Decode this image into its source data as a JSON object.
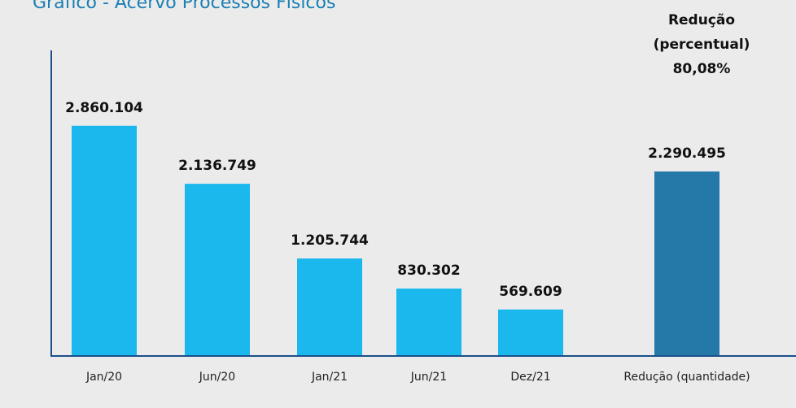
{
  "chart_data": {
    "type": "bar",
    "title": "Gráfico - Acervo Processos Físicos",
    "categories": [
      "Jan/20",
      "Jun/20",
      "Jan/21",
      "Jun/21",
      "Dez/21",
      "Redução (quantidade)"
    ],
    "values": [
      2860104,
      2136749,
      1205744,
      830302,
      569609,
      2290495
    ],
    "value_labels": [
      "2.860.104",
      "2.136.749",
      "1.205.744",
      "830.302",
      "569.609",
      "2.290.495"
    ],
    "colors": [
      "#1ab8ec",
      "#1ab8ec",
      "#1ab8ec",
      "#1ab8ec",
      "#1ab8ec",
      "#2479a8"
    ],
    "ylim": [
      0,
      3800000
    ],
    "annotation": [
      "Redução",
      "(percentual)",
      "80,08%"
    ]
  }
}
